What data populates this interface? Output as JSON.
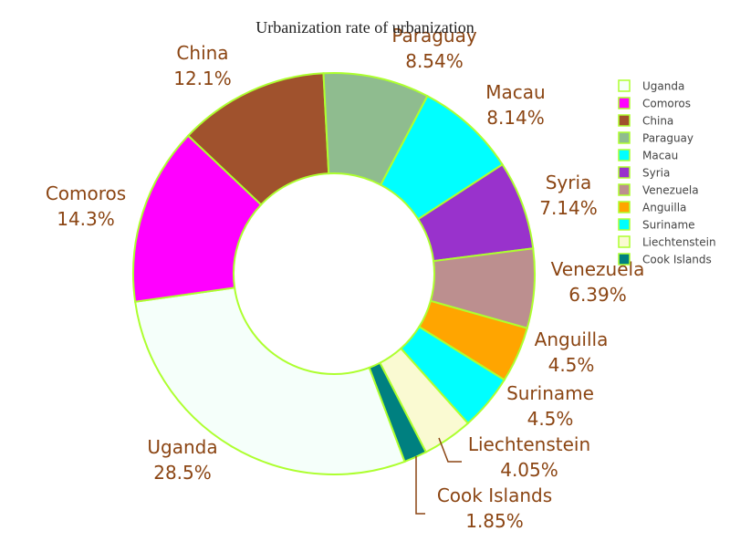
{
  "chart_data": {
    "type": "pie",
    "hole": true,
    "title": "Urbanization rate of urbanization",
    "legend_position": "right",
    "slice_border_color": "#adff2f",
    "label_color": "#8b4513",
    "slices": [
      {
        "label": "Uganda",
        "value": 28.5,
        "percent_text": "28.5%",
        "color": "#f5fffa"
      },
      {
        "label": "Comoros",
        "value": 14.3,
        "percent_text": "14.3%",
        "color": "#ff00ff"
      },
      {
        "label": "China",
        "value": 12.1,
        "percent_text": "12.1%",
        "color": "#a0522d"
      },
      {
        "label": "Paraguay",
        "value": 8.54,
        "percent_text": "8.54%",
        "color": "#8fbc8f"
      },
      {
        "label": "Macau",
        "value": 8.14,
        "percent_text": "8.14%",
        "color": "#00ffff"
      },
      {
        "label": "Syria",
        "value": 7.14,
        "percent_text": "7.14%",
        "color": "#9932cc"
      },
      {
        "label": "Venezuela",
        "value": 6.39,
        "percent_text": "6.39%",
        "color": "#bc8f8f"
      },
      {
        "label": "Anguilla",
        "value": 4.5,
        "percent_text": "4.5%",
        "color": "#ffa500"
      },
      {
        "label": "Suriname",
        "value": 4.5,
        "percent_text": "4.5%",
        "color": "#00ffff"
      },
      {
        "label": "Liechtenstein",
        "value": 4.05,
        "percent_text": "4.05%",
        "color": "#fafad2"
      },
      {
        "label": "Cook Islands",
        "value": 1.85,
        "percent_text": "1.85%",
        "color": "#008080"
      }
    ]
  }
}
